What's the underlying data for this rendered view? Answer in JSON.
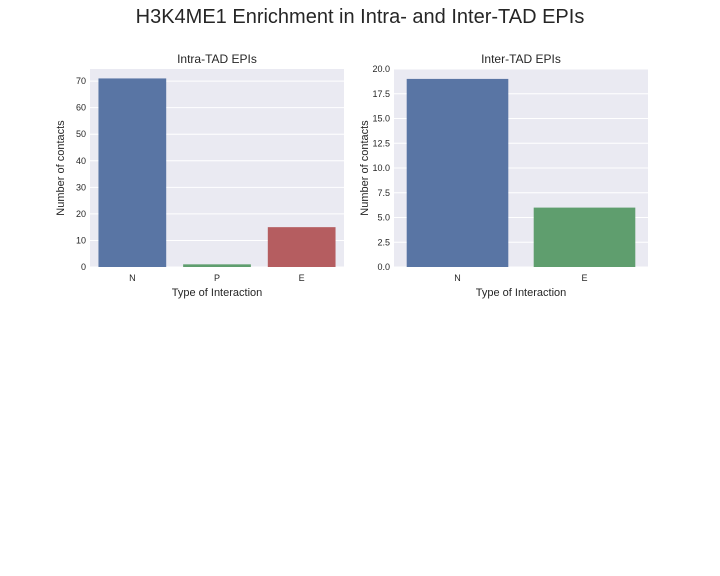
{
  "figure": {
    "title": "H3K4ME1 Enrichment in Intra- and Inter-TAD EPIs"
  },
  "chart_data": [
    {
      "type": "bar",
      "title": "Intra-TAD EPIs",
      "categories": [
        "N",
        "P",
        "E"
      ],
      "values": [
        71,
        1,
        15
      ],
      "colors": [
        "#5975a4",
        "#5f9e6e",
        "#b55d60"
      ],
      "xlabel": "Type of Interaction",
      "ylabel": "Number of contacts",
      "ylim": [
        0,
        74.55
      ],
      "yticks": [
        0,
        10,
        20,
        30,
        40,
        50,
        60,
        70
      ],
      "ytick_labels": [
        "0",
        "10",
        "20",
        "30",
        "40",
        "50",
        "60",
        "70"
      ],
      "grid": true
    },
    {
      "type": "bar",
      "title": "Inter-TAD EPIs",
      "categories": [
        "N",
        "E"
      ],
      "values": [
        19,
        6
      ],
      "colors": [
        "#5975a4",
        "#5f9e6e"
      ],
      "xlabel": "Type of Interaction",
      "ylabel": "Number of contacts",
      "ylim": [
        0,
        20
      ],
      "yticks": [
        0,
        2.5,
        5,
        7.5,
        10,
        12.5,
        15,
        17.5,
        20
      ],
      "ytick_labels": [
        "0.0",
        "2.5",
        "5.0",
        "7.5",
        "10.0",
        "12.5",
        "15.0",
        "17.5",
        "20.0"
      ],
      "grid": true
    }
  ]
}
